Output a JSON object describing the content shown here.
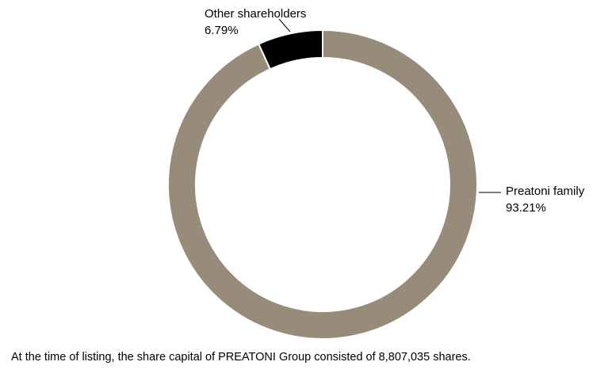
{
  "chart_data": {
    "type": "pie",
    "donut": true,
    "start": "top",
    "direction": "clockwise",
    "slices": [
      {
        "label": "Preatoni family",
        "value_label": "93.21%",
        "value": 93.21,
        "color": "#978c79",
        "label_side": "right"
      },
      {
        "label": "Other shareholders",
        "value_label": "6.79%",
        "value": 6.79,
        "color": "#000000",
        "label_side": "top-left"
      }
    ],
    "separator_color": "#ffffff"
  },
  "caption": "At the time of listing, the share capital of PREATONI Group consisted of 8,807,035 shares."
}
